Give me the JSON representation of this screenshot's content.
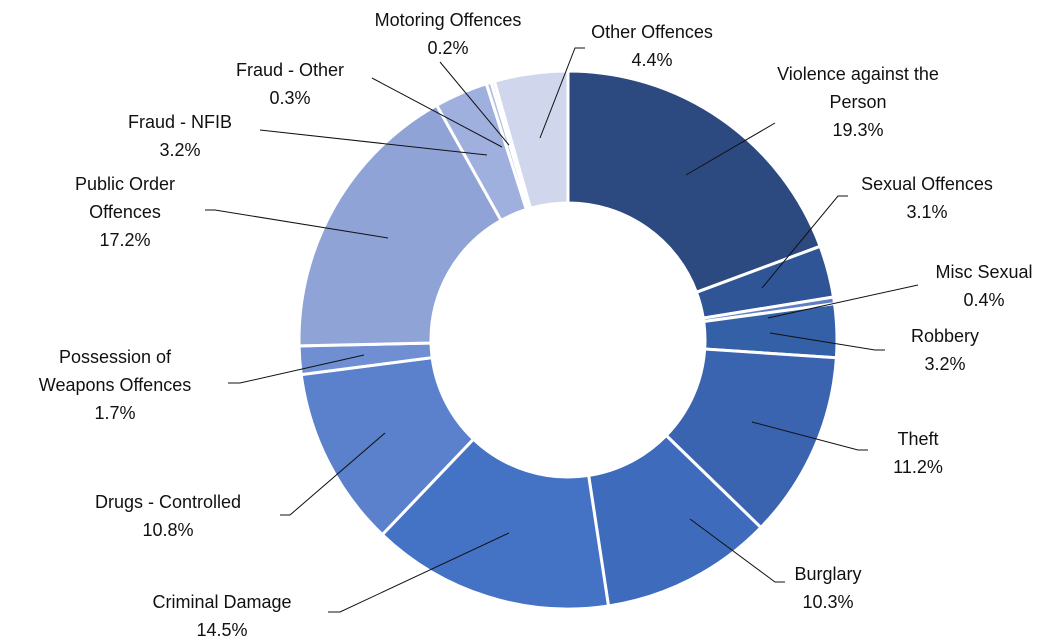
{
  "chart_data": {
    "type": "donut",
    "categories": [
      "Violence against the Person",
      "Sexual Offences",
      "Misc Sexual",
      "Robbery",
      "Theft",
      "Burglary",
      "Criminal Damage",
      "Drugs - Controlled",
      "Possession of Weapons Offences",
      "Public Order Offences",
      "Fraud - NFIB",
      "Fraud - Other",
      "Motoring Offences",
      "Other Offences"
    ],
    "values": [
      19.3,
      3.1,
      0.4,
      3.2,
      11.2,
      10.3,
      14.5,
      10.8,
      1.7,
      17.2,
      3.2,
      0.3,
      0.2,
      4.4
    ],
    "value_labels": [
      "19.3%",
      "3.1%",
      "0.4%",
      "3.2%",
      "11.2%",
      "10.3%",
      "14.5%",
      "10.8%",
      "1.7%",
      "17.2%",
      "3.2%",
      "0.3%",
      "0.2%",
      "4.4%"
    ],
    "colors": [
      "#2c4a80",
      "#2f5597",
      "#5f7fc0",
      "#3460a8",
      "#3a64b0",
      "#3f6bbd",
      "#4472c4",
      "#5b80cc",
      "#6f8fd2",
      "#8fa3d6",
      "#a0b0de",
      "#b4c0e4",
      "#c0cae8",
      "#d0d6ec"
    ]
  }
}
